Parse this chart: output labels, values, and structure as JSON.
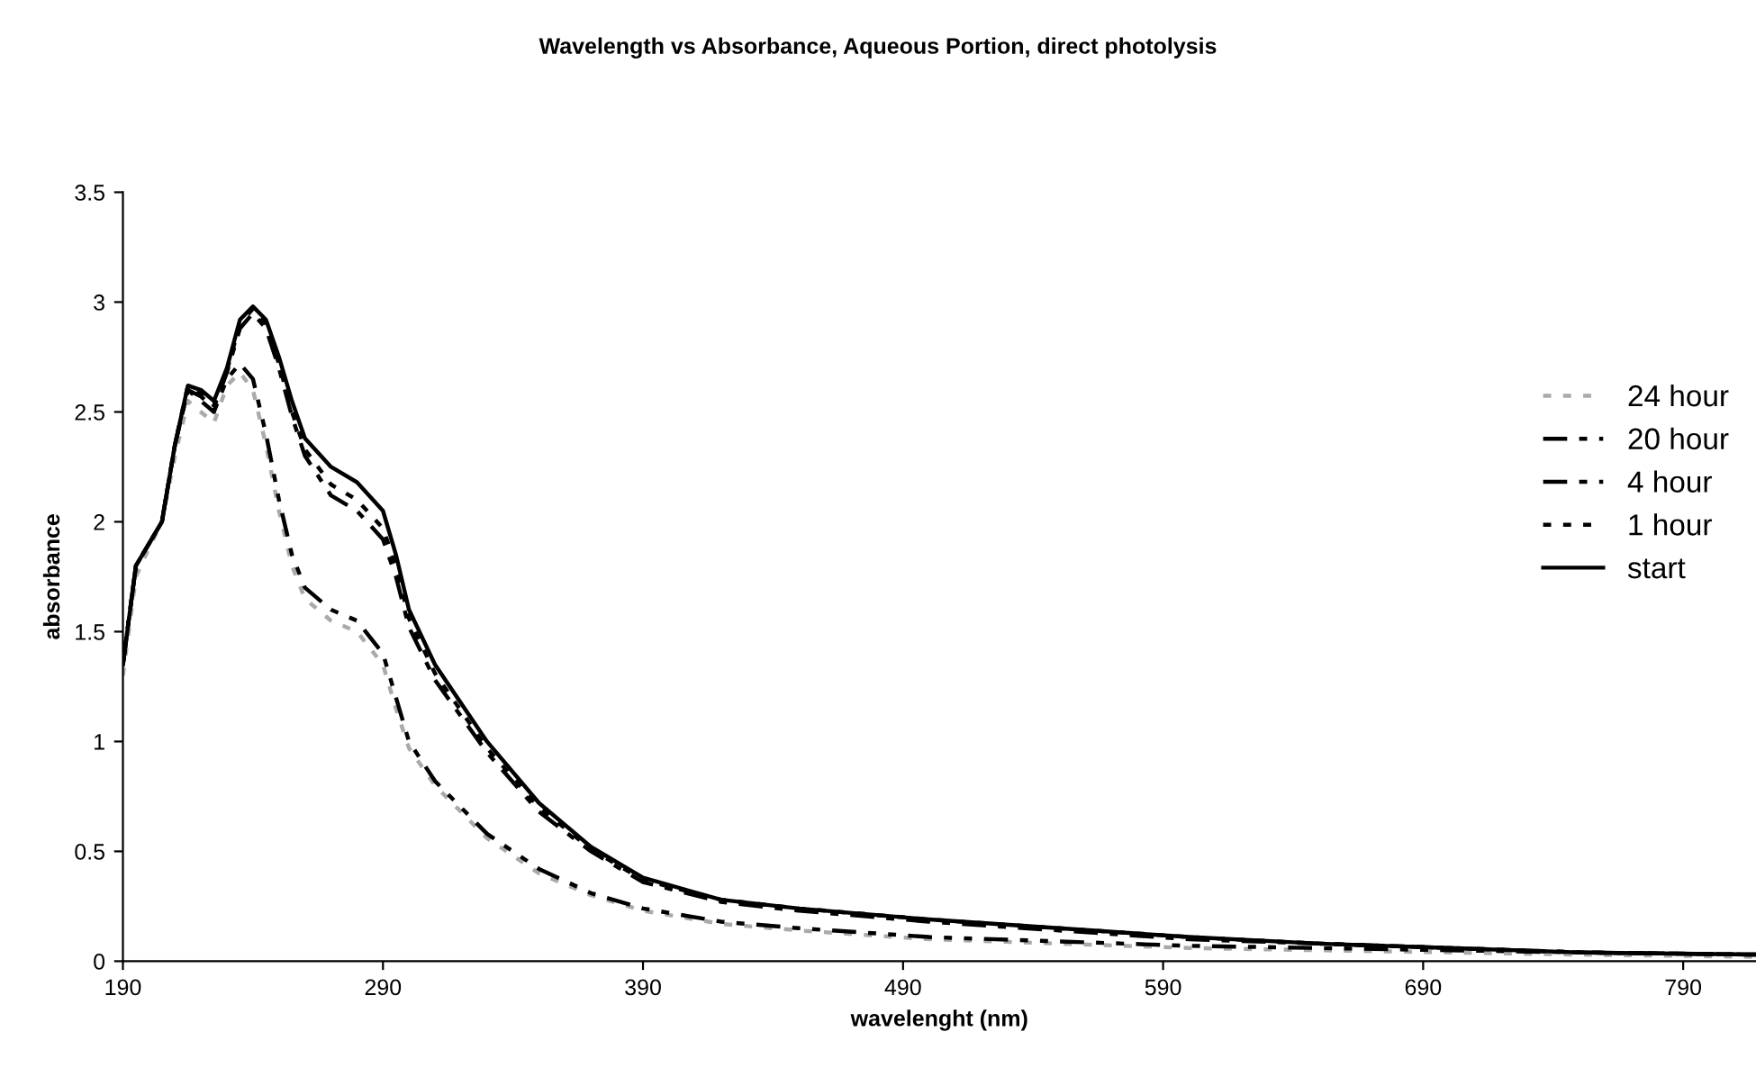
{
  "chart_data": {
    "type": "line",
    "title": "Wavelength vs Absorbance, Aqueous Portion, direct photolysis",
    "xlabel": "wavelenght (nm)",
    "ylabel": "absorbance",
    "x": [
      190,
      195,
      200,
      205,
      210,
      215,
      220,
      225,
      230,
      235,
      240,
      245,
      250,
      255,
      260,
      270,
      280,
      290,
      295,
      300,
      310,
      330,
      350,
      370,
      390,
      420,
      450,
      500,
      550,
      600,
      650,
      700,
      750,
      818
    ],
    "series": [
      {
        "name": "24 hour",
        "color": "#aaaaaa",
        "line_style": "dotted",
        "values": [
          1.3,
          1.75,
          1.88,
          2.0,
          2.3,
          2.55,
          2.5,
          2.45,
          2.62,
          2.68,
          2.6,
          2.35,
          2.05,
          1.8,
          1.65,
          1.55,
          1.5,
          1.35,
          1.15,
          0.97,
          0.8,
          0.56,
          0.4,
          0.3,
          0.23,
          0.17,
          0.14,
          0.1,
          0.08,
          0.06,
          0.05,
          0.04,
          0.03,
          0.02
        ]
      },
      {
        "name": "20 hour",
        "color": "#000000",
        "line_style": "dashdotdot",
        "values": [
          1.35,
          1.8,
          1.9,
          2.0,
          2.35,
          2.6,
          2.55,
          2.5,
          2.65,
          2.72,
          2.65,
          2.4,
          2.1,
          1.85,
          1.7,
          1.6,
          1.55,
          1.4,
          1.2,
          1.0,
          0.82,
          0.58,
          0.42,
          0.31,
          0.24,
          0.18,
          0.15,
          0.11,
          0.09,
          0.07,
          0.06,
          0.05,
          0.04,
          0.03
        ]
      },
      {
        "name": "4 hour",
        "color": "#000000",
        "line_style": "dashdot",
        "values": [
          1.35,
          1.8,
          1.9,
          2.0,
          2.35,
          2.6,
          2.57,
          2.52,
          2.68,
          2.88,
          2.95,
          2.88,
          2.7,
          2.48,
          2.3,
          2.12,
          2.05,
          1.92,
          1.75,
          1.52,
          1.28,
          0.95,
          0.68,
          0.5,
          0.36,
          0.27,
          0.23,
          0.18,
          0.14,
          0.1,
          0.08,
          0.06,
          0.04,
          0.03
        ]
      },
      {
        "name": "1 hour",
        "color": "#000000",
        "line_style": "dotted",
        "values": [
          1.35,
          1.8,
          1.9,
          2.0,
          2.35,
          2.62,
          2.58,
          2.53,
          2.69,
          2.9,
          2.97,
          2.9,
          2.72,
          2.5,
          2.33,
          2.17,
          2.1,
          1.97,
          1.8,
          1.56,
          1.31,
          0.97,
          0.7,
          0.51,
          0.37,
          0.28,
          0.24,
          0.19,
          0.15,
          0.11,
          0.08,
          0.06,
          0.04,
          0.03
        ]
      },
      {
        "name": "start",
        "color": "#000000",
        "line_style": "solid",
        "values": [
          1.35,
          1.8,
          1.9,
          2.0,
          2.35,
          2.62,
          2.6,
          2.55,
          2.7,
          2.92,
          2.98,
          2.92,
          2.75,
          2.55,
          2.38,
          2.25,
          2.18,
          2.05,
          1.85,
          1.6,
          1.35,
          1.0,
          0.72,
          0.52,
          0.38,
          0.28,
          0.24,
          0.19,
          0.15,
          0.11,
          0.08,
          0.06,
          0.04,
          0.03
        ]
      }
    ],
    "xlim": [
      190,
      818
    ],
    "ylim": [
      0,
      3.5
    ],
    "xticks": [
      190,
      290,
      390,
      490,
      590,
      690,
      790
    ],
    "yticks": [
      0,
      0.5,
      1,
      1.5,
      2,
      2.5,
      3,
      3.5
    ],
    "grid": false,
    "legend": "right",
    "marker": "none"
  }
}
